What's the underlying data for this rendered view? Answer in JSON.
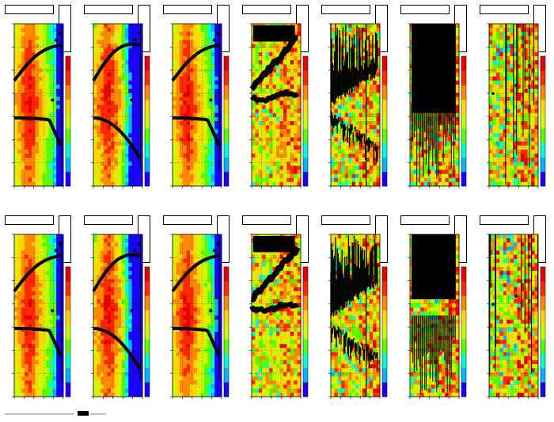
{
  "figure": {
    "background": "#ffffff",
    "rows": 2,
    "cols": 7,
    "palette": [
      "#1a00ff",
      "#00b4ff",
      "#00ffd0",
      "#59ff00",
      "#c8ff00",
      "#ffd800",
      "#ff8a00",
      "#ff2a00",
      "#e80000"
    ]
  },
  "chart_data": [
    {
      "type": "heatmap",
      "panel": "r1c1",
      "title": "",
      "colormap": "rainbow",
      "hot_center": true,
      "cool_right": false,
      "overlay": "two-curves",
      "noise": 0.1
    },
    {
      "type": "heatmap",
      "panel": "r1c2",
      "title": "",
      "colormap": "rainbow",
      "hot_center": true,
      "cool_right": true,
      "overlay": "two-curves-bend",
      "noise": 0.15
    },
    {
      "type": "heatmap",
      "panel": "r1c3",
      "title": "",
      "colormap": "rainbow",
      "hot_center": true,
      "cool_right": false,
      "overlay": "two-curves",
      "noise": 0.1
    },
    {
      "type": "heatmap",
      "panel": "r1c4",
      "title": "",
      "colormap": "rainbow",
      "hot_center": false,
      "cool_right": false,
      "overlay": "fat-bands",
      "noise": 0.35
    },
    {
      "type": "heatmap",
      "panel": "r1c5",
      "title": "",
      "colormap": "rainbow",
      "hot_center": false,
      "cool_right": false,
      "overlay": "noisy-dense",
      "noise": 0.5
    },
    {
      "type": "heatmap",
      "panel": "r1c6",
      "title": "",
      "colormap": "rainbow",
      "hot_center": false,
      "cool_right": false,
      "overlay": "black-block",
      "noise": 0.5
    },
    {
      "type": "heatmap",
      "panel": "r1c7",
      "title": "",
      "colormap": "rainbow",
      "hot_center": false,
      "cool_right": false,
      "overlay": "sparse-lines",
      "noise": 0.55
    },
    {
      "type": "heatmap",
      "panel": "r2c1",
      "title": "",
      "colormap": "rainbow",
      "hot_center": true,
      "cool_right": false,
      "overlay": "two-curves",
      "noise": 0.1
    },
    {
      "type": "heatmap",
      "panel": "r2c2",
      "title": "",
      "colormap": "rainbow",
      "hot_center": true,
      "cool_right": true,
      "overlay": "two-curves-bend",
      "noise": 0.15
    },
    {
      "type": "heatmap",
      "panel": "r2c3",
      "title": "",
      "colormap": "rainbow",
      "hot_center": true,
      "cool_right": false,
      "overlay": "two-curves",
      "noise": 0.1
    },
    {
      "type": "heatmap",
      "panel": "r2c4",
      "title": "",
      "colormap": "rainbow",
      "hot_center": false,
      "cool_right": false,
      "overlay": "fat-bands",
      "noise": 0.35
    },
    {
      "type": "heatmap",
      "panel": "r2c5",
      "title": "",
      "colormap": "rainbow",
      "hot_center": false,
      "cool_right": false,
      "overlay": "noisy-dense",
      "noise": 0.5
    },
    {
      "type": "heatmap",
      "panel": "r2c6",
      "title": "",
      "colormap": "rainbow",
      "hot_center": false,
      "cool_right": false,
      "overlay": "black-block",
      "noise": 0.5
    },
    {
      "type": "heatmap",
      "panel": "r2c7",
      "title": "",
      "colormap": "rainbow",
      "hot_center": false,
      "cool_right": false,
      "overlay": "sparse-lines",
      "noise": 0.55
    }
  ]
}
